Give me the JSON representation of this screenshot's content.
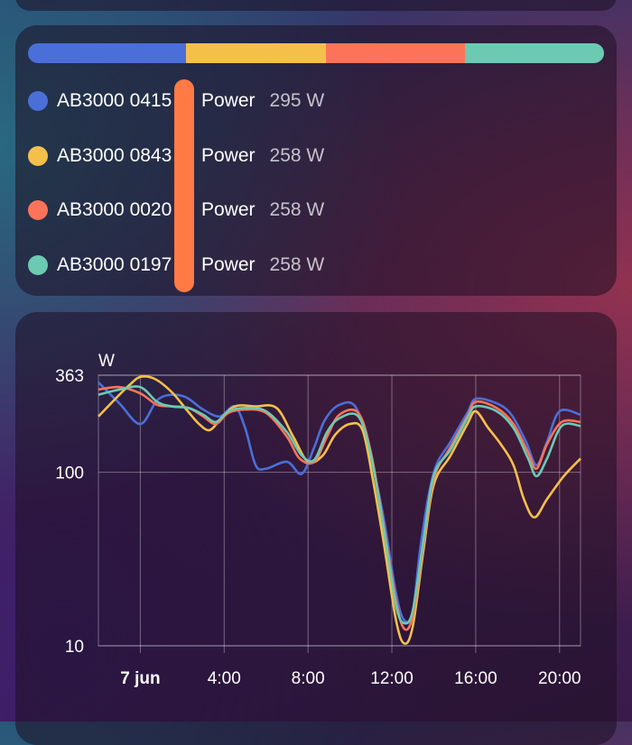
{
  "devices": [
    {
      "name": "AB3000 0415",
      "attribute": "Power",
      "value": "295 W",
      "color": "#4b6fd8"
    },
    {
      "name": "AB3000 0843",
      "attribute": "Power",
      "value": "258 W",
      "color": "#f5c04a"
    },
    {
      "name": "AB3000 0020",
      "attribute": "Power",
      "value": "258 W",
      "color": "#fc7359"
    },
    {
      "name": "AB3000 0197",
      "attribute": "Power",
      "value": "258 W",
      "color": "#6ccab2"
    }
  ],
  "proportion_bar": {
    "fractions": [
      0.275,
      0.242,
      0.242,
      0.241
    ]
  },
  "chart_data": {
    "type": "line",
    "ylabel": "W",
    "yscale": "log",
    "ylim": [
      10,
      363
    ],
    "yticks": [
      "363",
      "100",
      "10"
    ],
    "xticks": [
      {
        "label": "7 jun",
        "hour": 0,
        "bold": true
      },
      {
        "label": "4:00",
        "hour": 4
      },
      {
        "label": "8:00",
        "hour": 8
      },
      {
        "label": "12:00",
        "hour": 12
      },
      {
        "label": "16:00",
        "hour": 16
      },
      {
        "label": "20:00",
        "hour": 20
      }
    ],
    "xlim_hours": [
      -2,
      21
    ],
    "grid": true,
    "series": [
      {
        "color": "#4b6fd8",
        "points": [
          [
            -2,
            330
          ],
          [
            -1,
            250
          ],
          [
            0,
            190
          ],
          [
            0.8,
            260
          ],
          [
            1.5,
            280
          ],
          [
            2.2,
            270
          ],
          [
            3,
            230
          ],
          [
            3.8,
            210
          ],
          [
            4.5,
            240
          ],
          [
            5,
            180
          ],
          [
            5.5,
            110
          ],
          [
            6,
            105
          ],
          [
            7,
            115
          ],
          [
            7.7,
            98
          ],
          [
            8.3,
            140
          ],
          [
            8.8,
            200
          ],
          [
            9.5,
            245
          ],
          [
            10.3,
            235
          ],
          [
            11,
            120
          ],
          [
            11.6,
            55
          ],
          [
            12.2,
            20
          ],
          [
            12.6,
            14
          ],
          [
            13,
            16
          ],
          [
            13.4,
            40
          ],
          [
            14,
            100
          ],
          [
            14.8,
            150
          ],
          [
            15.6,
            220
          ],
          [
            16,
            265
          ],
          [
            17,
            250
          ],
          [
            17.7,
            215
          ],
          [
            18.4,
            150
          ],
          [
            18.9,
            110
          ],
          [
            19.4,
            150
          ],
          [
            20,
            225
          ],
          [
            21,
            215
          ]
        ]
      },
      {
        "color": "#f5c04a",
        "points": [
          [
            -2,
            210
          ],
          [
            -1,
            280
          ],
          [
            -0.5,
            320
          ],
          [
            0,
            355
          ],
          [
            0.7,
            345
          ],
          [
            1.5,
            290
          ],
          [
            2.2,
            230
          ],
          [
            2.8,
            190
          ],
          [
            3.3,
            175
          ],
          [
            3.8,
            200
          ],
          [
            4.5,
            240
          ],
          [
            5.5,
            240
          ],
          [
            6.5,
            235
          ],
          [
            7.3,
            160
          ],
          [
            8,
            115
          ],
          [
            8.7,
            125
          ],
          [
            9.3,
            165
          ],
          [
            10,
            190
          ],
          [
            10.6,
            175
          ],
          [
            11.1,
            90
          ],
          [
            11.6,
            40
          ],
          [
            12.2,
            14
          ],
          [
            12.6,
            10.3
          ],
          [
            13,
            13
          ],
          [
            13.5,
            35
          ],
          [
            14,
            85
          ],
          [
            14.8,
            125
          ],
          [
            15.6,
            190
          ],
          [
            16,
            225
          ],
          [
            16.6,
            180
          ],
          [
            17.2,
            145
          ],
          [
            17.8,
            110
          ],
          [
            18.3,
            70
          ],
          [
            18.8,
            55
          ],
          [
            19.4,
            70
          ],
          [
            20.2,
            95
          ],
          [
            21,
            120
          ]
        ]
      },
      {
        "color": "#fc7359",
        "points": [
          [
            -2,
            300
          ],
          [
            -1,
            310
          ],
          [
            0,
            285
          ],
          [
            0.8,
            245
          ],
          [
            1.5,
            240
          ],
          [
            2.3,
            235
          ],
          [
            3,
            210
          ],
          [
            3.6,
            190
          ],
          [
            4.2,
            220
          ],
          [
            5,
            230
          ],
          [
            6,
            220
          ],
          [
            7,
            160
          ],
          [
            7.6,
            120
          ],
          [
            8.3,
            115
          ],
          [
            8.9,
            160
          ],
          [
            9.5,
            215
          ],
          [
            10.4,
            220
          ],
          [
            11,
            130
          ],
          [
            11.6,
            50
          ],
          [
            12.2,
            18
          ],
          [
            12.6,
            12.5
          ],
          [
            13,
            15
          ],
          [
            13.5,
            38
          ],
          [
            14,
            92
          ],
          [
            14.8,
            140
          ],
          [
            15.6,
            210
          ],
          [
            16,
            255
          ],
          [
            17,
            235
          ],
          [
            17.8,
            190
          ],
          [
            18.5,
            130
          ],
          [
            18.9,
            105
          ],
          [
            19.4,
            145
          ],
          [
            20.1,
            195
          ],
          [
            21,
            195
          ]
        ]
      },
      {
        "color": "#6ccab2",
        "points": [
          [
            -2,
            280
          ],
          [
            -1,
            300
          ],
          [
            0,
            310
          ],
          [
            0.8,
            255
          ],
          [
            1.5,
            240
          ],
          [
            2.3,
            235
          ],
          [
            3,
            215
          ],
          [
            3.6,
            195
          ],
          [
            4.2,
            225
          ],
          [
            5,
            235
          ],
          [
            6,
            225
          ],
          [
            7,
            170
          ],
          [
            7.7,
            125
          ],
          [
            8.3,
            118
          ],
          [
            8.9,
            170
          ],
          [
            9.5,
            205
          ],
          [
            10.4,
            210
          ],
          [
            11,
            125
          ],
          [
            11.6,
            48
          ],
          [
            12.2,
            17
          ],
          [
            12.6,
            13.5
          ],
          [
            13,
            16
          ],
          [
            13.5,
            40
          ],
          [
            14,
            96
          ],
          [
            14.8,
            135
          ],
          [
            15.6,
            205
          ],
          [
            16,
            240
          ],
          [
            17,
            225
          ],
          [
            17.8,
            180
          ],
          [
            18.5,
            120
          ],
          [
            18.9,
            95
          ],
          [
            19.4,
            120
          ],
          [
            20.1,
            185
          ],
          [
            21,
            185
          ]
        ]
      }
    ]
  }
}
